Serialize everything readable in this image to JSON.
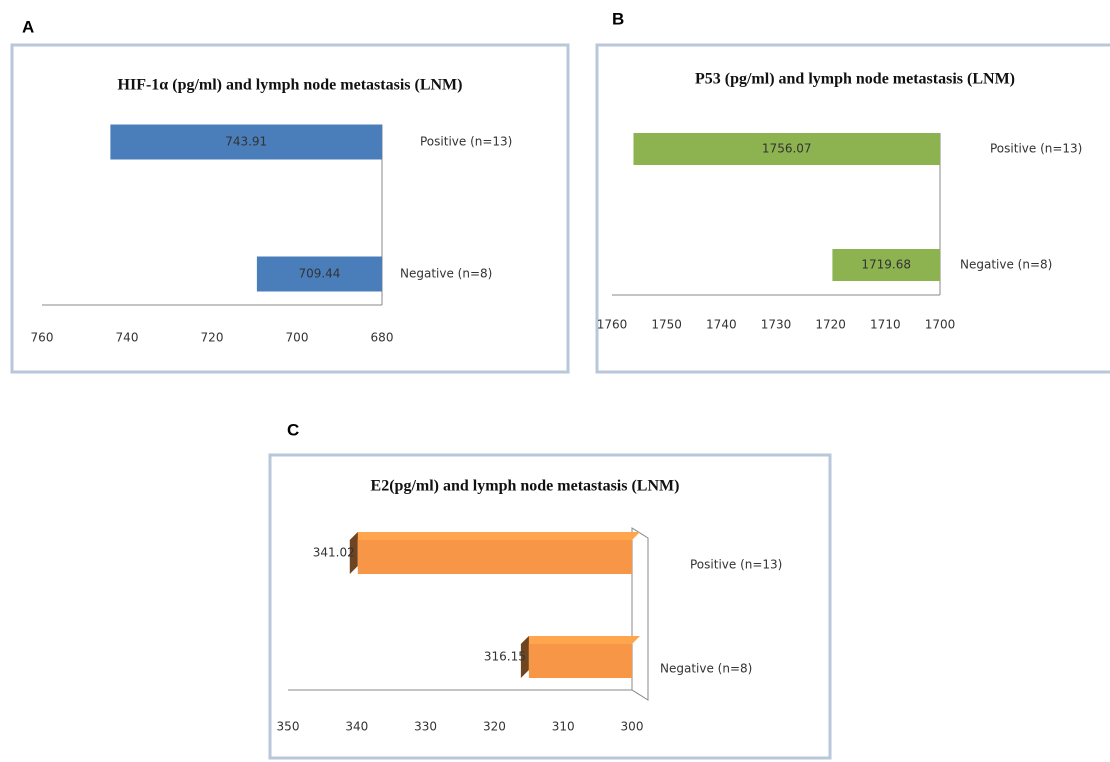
{
  "chart_data": [
    {
      "type": "bar",
      "panel": "A",
      "title": "HIF-1α (pg/ml) and lymph node metastasis (LNM)",
      "categories": [
        "Positive (n=13)",
        "Negative (n=8)"
      ],
      "values": [
        743.91,
        709.44
      ],
      "color": "#4a7ebb",
      "xlim": [
        760,
        680
      ],
      "xticks": [
        760,
        740,
        720,
        700,
        680
      ],
      "value_label_position": "inside"
    },
    {
      "type": "bar",
      "panel": "B",
      "title": "P53 (pg/ml) and lymph node metastasis (LNM)",
      "categories": [
        "Positive (n=13)",
        "Negative (n=8)"
      ],
      "values": [
        1756.07,
        1719.68
      ],
      "color": "#8db351",
      "xlim": [
        1760,
        1700
      ],
      "xticks": [
        1760,
        1750,
        1740,
        1730,
        1720,
        1710,
        1700
      ],
      "value_label_position": "inside"
    },
    {
      "type": "bar3d",
      "panel": "C",
      "title": "E2(pg/ml) and lymph node metastasis (LNM)",
      "categories": [
        "Positive (n=13)",
        "Negative (n=8)"
      ],
      "values": [
        341.02,
        316.15
      ],
      "color": "#f79646",
      "xlim": [
        350,
        300
      ],
      "xticks": [
        350,
        340,
        330,
        320,
        310,
        300
      ],
      "value_label_position": "outside"
    }
  ]
}
